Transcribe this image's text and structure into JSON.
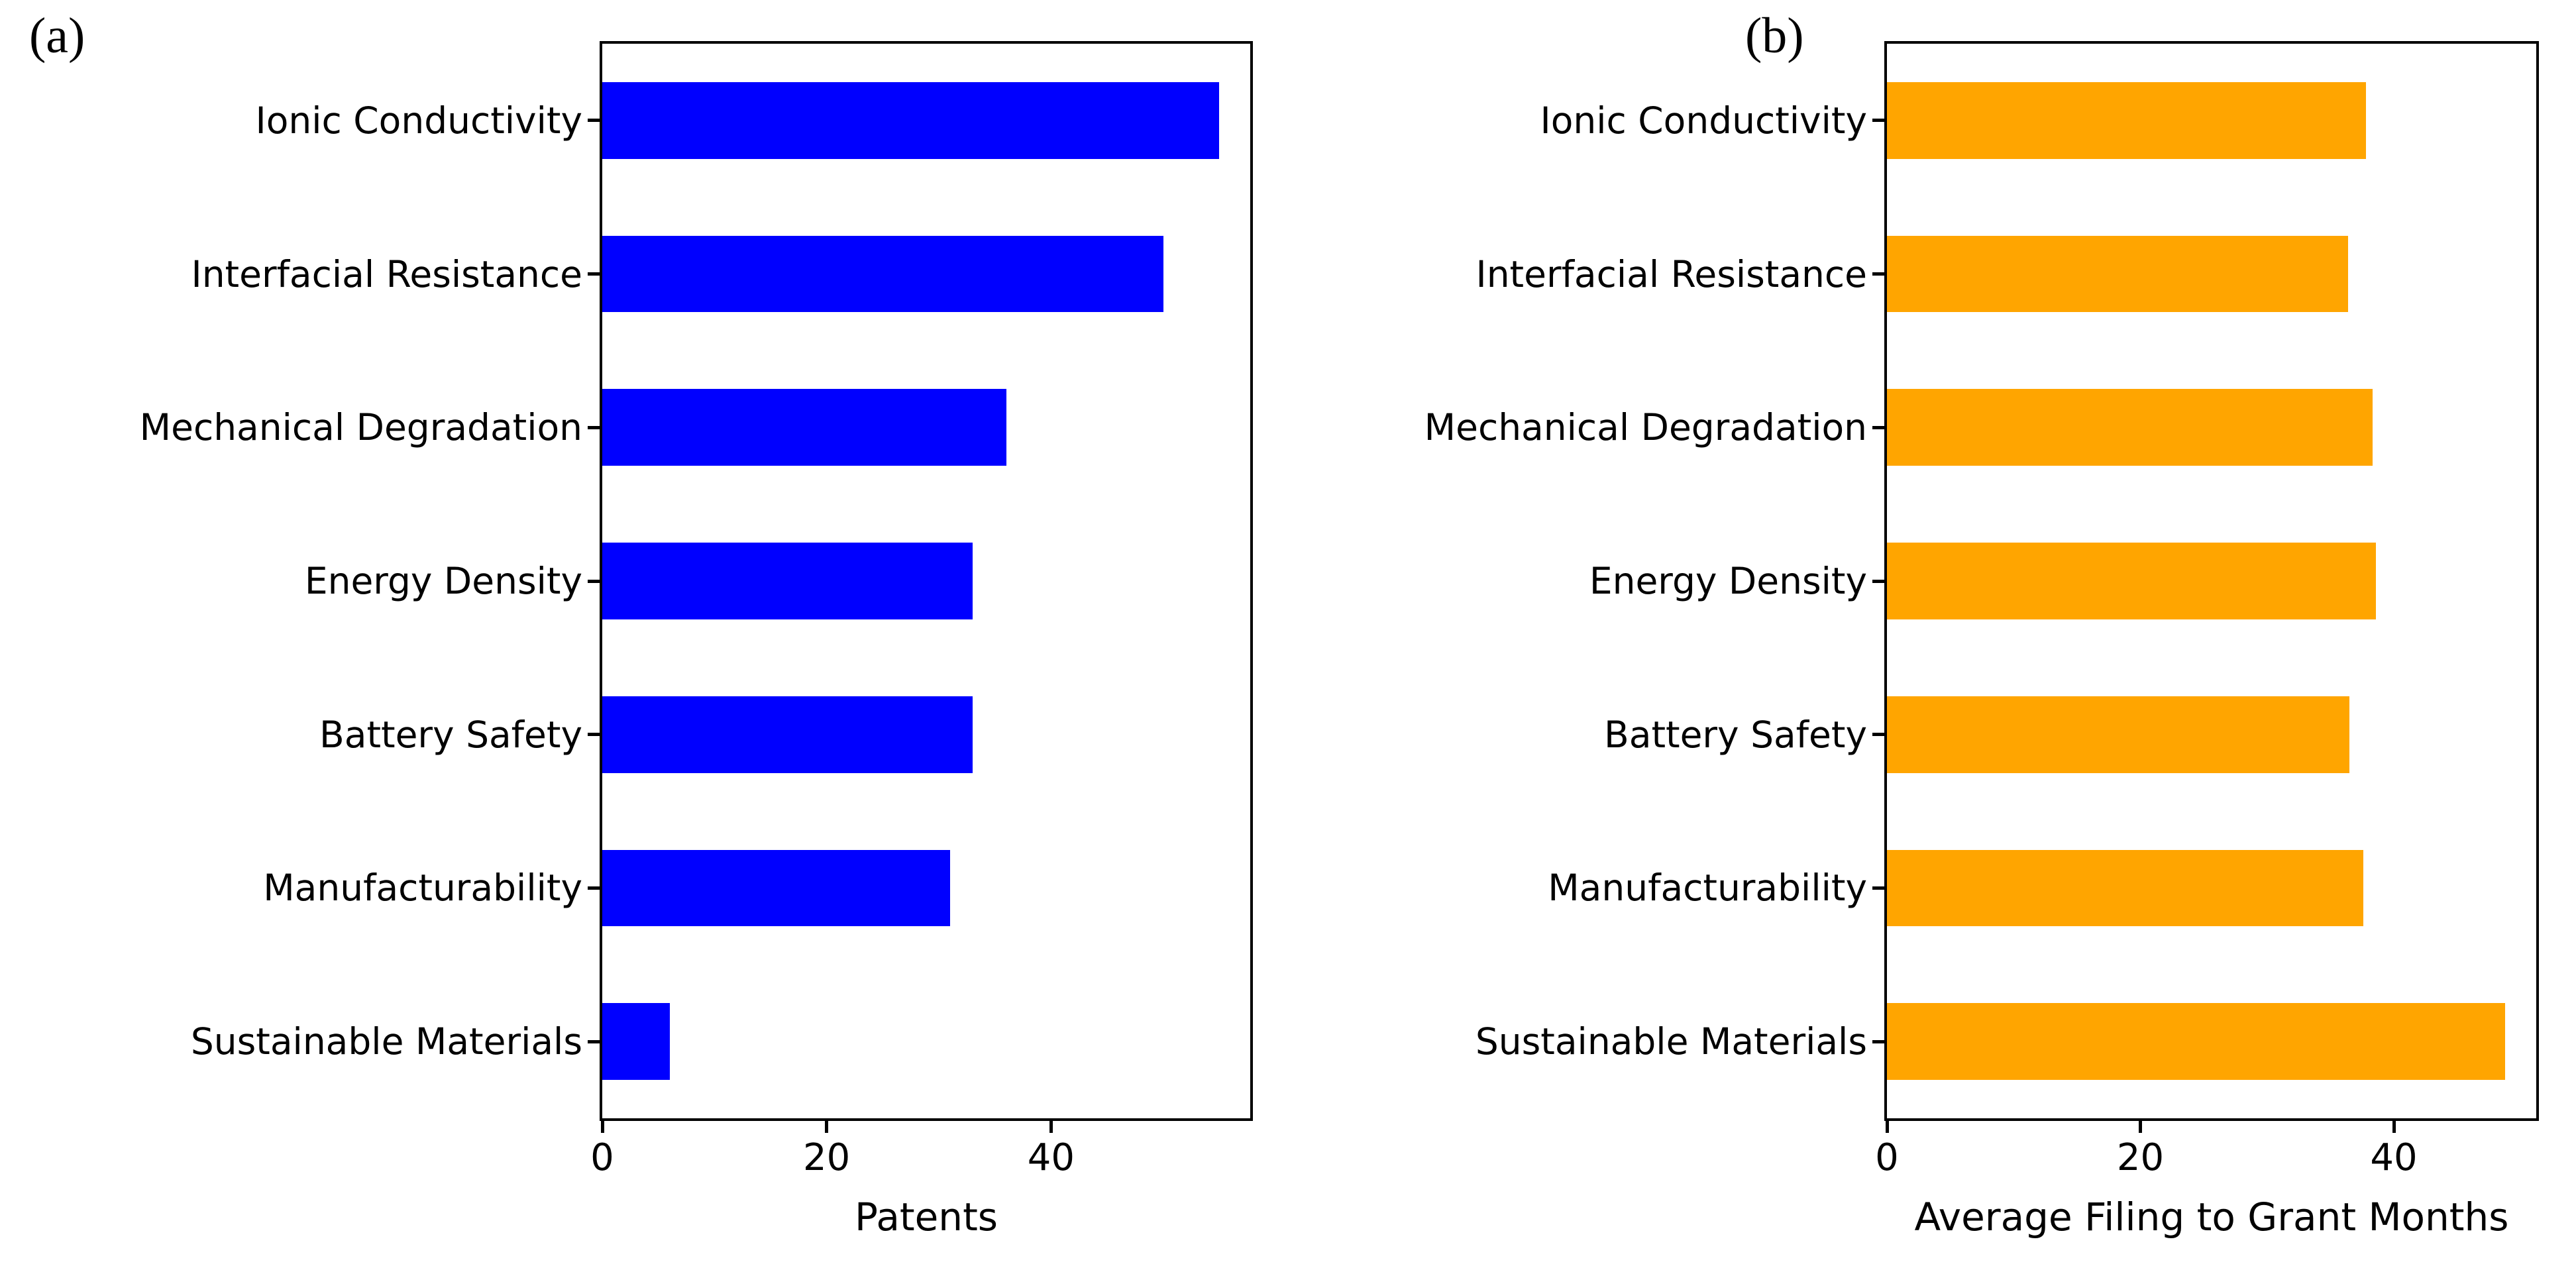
{
  "chart_data": [
    {
      "type": "bar",
      "orientation": "horizontal",
      "panel_label": "(a)",
      "categories": [
        "Ionic Conductivity",
        "Interfacial Resistance",
        "Mechanical Degradation",
        "Energy Density",
        "Battery Safety",
        "Manufacturability",
        "Sustainable Materials"
      ],
      "values": [
        55,
        50,
        36,
        33,
        33,
        31,
        6
      ],
      "title": "",
      "xlabel": "Patents",
      "ylabel": "",
      "xticks": [
        0,
        20,
        40
      ],
      "xlim": [
        0,
        57.75
      ],
      "grid": false,
      "legend": "none",
      "bar_color": "#0000ff",
      "bar_height_fraction": 0.5
    },
    {
      "type": "bar",
      "orientation": "horizontal",
      "panel_label": "(b)",
      "categories": [
        "Ionic Conductivity",
        "Interfacial Resistance",
        "Mechanical Degradation",
        "Energy Density",
        "Battery Safety",
        "Manufacturability",
        "Sustainable Materials"
      ],
      "values": [
        37.8,
        36.4,
        38.3,
        38.6,
        36.5,
        37.6,
        48.8
      ],
      "title": "",
      "xlabel": "Average Filing to Grant Months",
      "ylabel": "",
      "xticks": [
        0,
        20,
        40
      ],
      "xlim": [
        0,
        51.24
      ],
      "grid": false,
      "legend": "none",
      "bar_color": "#ffa500",
      "bar_height_fraction": 0.5
    }
  ],
  "colors": {
    "panel_a_bars": "#0000ff",
    "panel_b_bars": "#ffa500",
    "axes_and_text": "#000000",
    "background": "#ffffff"
  }
}
